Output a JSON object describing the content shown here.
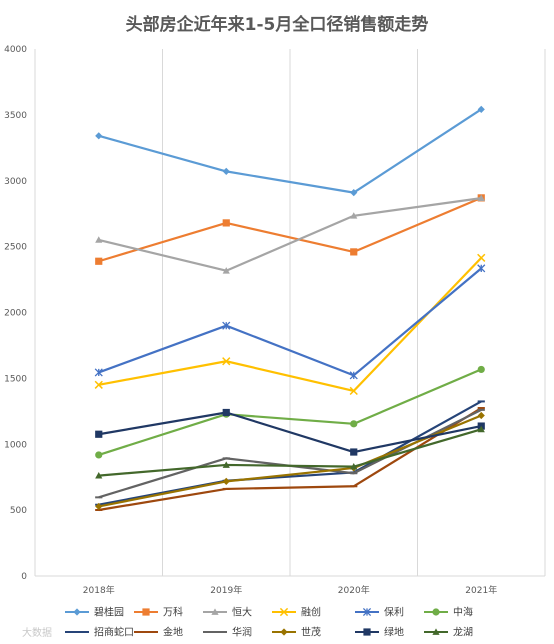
{
  "chart_data": {
    "type": "line",
    "title": "头部房企近年来1-5月全口径销售额走势",
    "categories": [
      "2018年",
      "2019年",
      "2020年",
      "2021年"
    ],
    "ylim": [
      0,
      4000
    ],
    "yticks": [
      0,
      500,
      1000,
      1500,
      2000,
      2500,
      3000,
      3500,
      4000
    ],
    "grid": "vertical",
    "legend_position": "bottom",
    "series": [
      {
        "name": "碧桂园",
        "color": "#5B9BD5",
        "marker": "diamond",
        "values": [
          3341,
          3071,
          2910,
          3542
        ]
      },
      {
        "name": "万科",
        "color": "#ED7D31",
        "marker": "square",
        "values": [
          2389,
          2680,
          2460,
          2870
        ]
      },
      {
        "name": "恒大",
        "color": "#A5A5A5",
        "marker": "triangle",
        "values": [
          2551,
          2317,
          2734,
          2868
        ]
      },
      {
        "name": "融创",
        "color": "#FFC000",
        "marker": "x",
        "values": [
          1451,
          1630,
          1405,
          2415
        ]
      },
      {
        "name": "保利",
        "color": "#4472C4",
        "marker": "star",
        "values": [
          1545,
          1900,
          1523,
          2335
        ]
      },
      {
        "name": "中海",
        "color": "#70AD47",
        "marker": "circle",
        "values": [
          919,
          1228,
          1155,
          1568
        ]
      },
      {
        "name": "招商蛇口",
        "color": "#264478",
        "marker": "dash",
        "values": [
          541,
          723,
          786,
          1325
        ]
      },
      {
        "name": "金地",
        "color": "#9E480E",
        "marker": "dash",
        "values": [
          501,
          661,
          681,
          1275
        ]
      },
      {
        "name": "华润",
        "color": "#636363",
        "marker": "dash",
        "values": [
          597,
          893,
          780,
          1261
        ]
      },
      {
        "name": "世茂",
        "color": "#997300",
        "marker": "diamond",
        "values": [
          528,
          718,
          820,
          1218
        ]
      },
      {
        "name": "绿地",
        "color": "#203864",
        "marker": "square",
        "values": [
          1076,
          1241,
          941,
          1138
        ]
      },
      {
        "name": "龙湖",
        "color": "#43682B",
        "marker": "triangle",
        "values": [
          762,
          843,
          830,
          1113
        ]
      }
    ]
  },
  "watermark": "大数据"
}
